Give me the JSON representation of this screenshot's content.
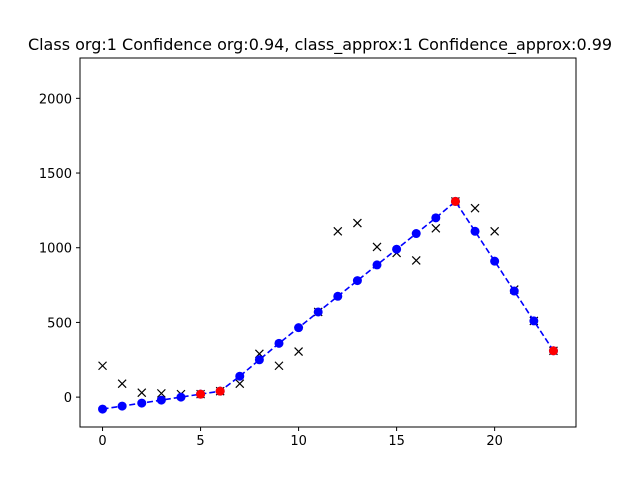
{
  "chart_data": {
    "type": "line",
    "title": "Class org:1  Confidence org:0.94, class_approx:1 Confidence_approx:0.99",
    "xlabel": "",
    "ylabel": "",
    "xlim": [
      -1.15,
      24.15
    ],
    "ylim": [
      -200,
      2270
    ],
    "grid": false,
    "xticks": [
      0,
      5,
      10,
      15,
      20
    ],
    "yticks": [
      0,
      500,
      1000,
      1500,
      2000
    ],
    "series": [
      {
        "style": "marker-x",
        "color": "#000000",
        "x": [
          0,
          1,
          2,
          3,
          4,
          5,
          6,
          7,
          8,
          9,
          10,
          11,
          12,
          13,
          14,
          15,
          16,
          17,
          18,
          19,
          20,
          21,
          22,
          23
        ],
        "y": [
          210,
          90,
          30,
          25,
          20,
          20,
          40,
          90,
          290,
          210,
          305,
          570,
          1110,
          1165,
          1005,
          965,
          915,
          1130,
          1310,
          1265,
          1110,
          720,
          510,
          310
        ]
      },
      {
        "style": "dashed-line-circle",
        "color": "#0000ff",
        "x": [
          0,
          1,
          2,
          3,
          4,
          5,
          6,
          7,
          8,
          9,
          10,
          11,
          12,
          13,
          14,
          15,
          16,
          17,
          18,
          19,
          20,
          21,
          22,
          23
        ],
        "y": [
          -80,
          -60,
          -40,
          -20,
          0,
          20,
          40,
          140,
          250,
          360,
          465,
          570,
          675,
          780,
          885,
          990,
          1095,
          1200,
          1310,
          1110,
          910,
          710,
          510,
          310
        ]
      },
      {
        "style": "marker-red-circle",
        "color": "#ff0000",
        "x": [
          5,
          6,
          18,
          23
        ],
        "y": [
          20,
          40,
          1310,
          310
        ]
      }
    ]
  }
}
